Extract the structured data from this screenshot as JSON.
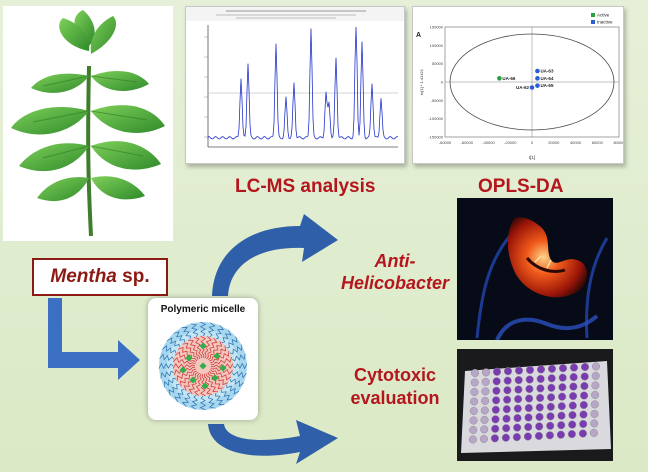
{
  "labels": {
    "lcms": "LC-MS analysis",
    "oplsda": "OPLS-DA",
    "mentha_genus": "Mentha",
    "mentha_suffix": " sp.",
    "anti_line1": "Anti-",
    "anti_line2": "Helicobacter",
    "cyto_line1": "Cytotoxic",
    "cyto_line2": "evaluation",
    "micelle": "Polymeric micelle"
  },
  "opls_panel": {
    "panel_letter": "A",
    "legend": [
      {
        "name": "Active",
        "color": "#2aa040"
      },
      {
        "name": "Inactive",
        "color": "#2c5fd6"
      }
    ],
    "points": [
      {
        "label": "UA-66",
        "t1": -30000,
        "t2": 10000,
        "group": "Active"
      },
      {
        "label": "UA-63",
        "t1": 5000,
        "t2": 30000,
        "group": "Inactive"
      },
      {
        "label": "UA-64",
        "t1": 5000,
        "t2": 10000,
        "group": "Inactive"
      },
      {
        "label": "UA-65",
        "t1": 5000,
        "t2": -10000,
        "group": "Inactive"
      },
      {
        "label": "UA-62",
        "t1": 0,
        "t2": -15000,
        "group": "Inactive"
      }
    ],
    "x_ticks": [
      "-80000",
      "-60000",
      "-40000",
      "-20000",
      "0",
      "20000",
      "40000",
      "60000",
      "80000"
    ],
    "y_ticks": [
      "150000",
      "100000",
      "50000",
      "0",
      "-50000",
      "-100000",
      "-150000"
    ],
    "xlim": [
      -80000,
      80000
    ],
    "ylim": [
      -150000,
      150000
    ],
    "xlabel": "t[1]",
    "ylabel": "to[1] * 1.41421"
  },
  "colors": {
    "label_red": "#b3161d",
    "arrow_blue": "#2e5ea8",
    "chromatogram": "#2233cc",
    "background": "#dfeccd"
  },
  "icons": [
    "mint-plant-image",
    "chromatogram-image",
    "stomach-image",
    "well-plate-image",
    "micelle-icon",
    "curved-arrow-icon",
    "elbow-arrow-icon"
  ]
}
